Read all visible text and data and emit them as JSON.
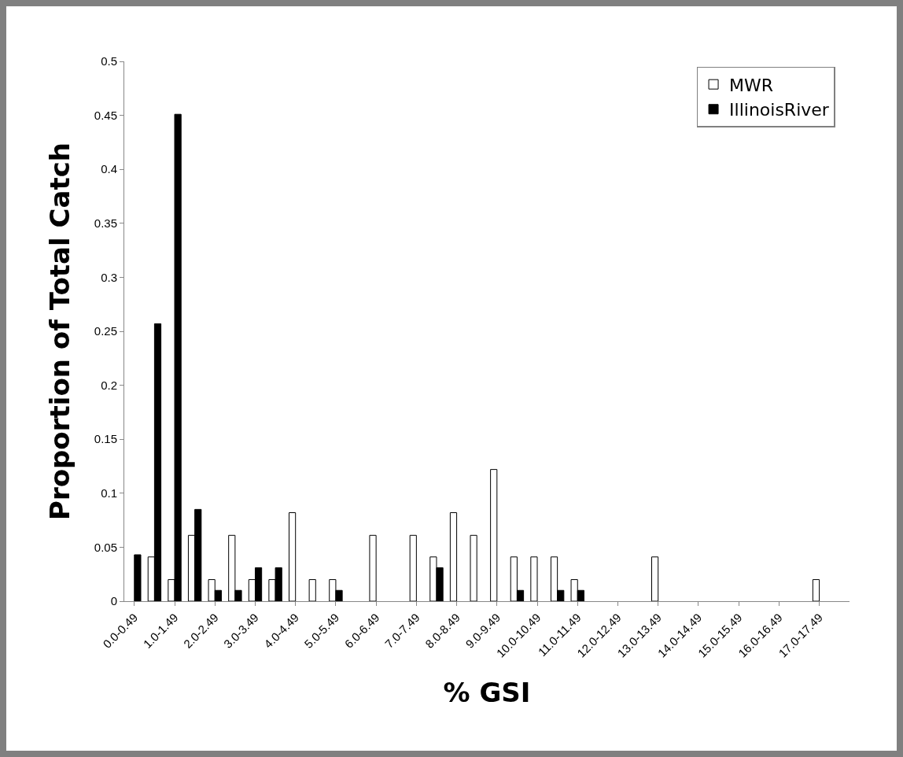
{
  "chart_data": {
    "type": "bar",
    "xlabel": "% GSI",
    "ylabel": "Proportion of Total Catch",
    "categories": [
      "0.0-0.49",
      null,
      "1.0-1.49",
      null,
      "2.0-2.49",
      null,
      "3.0-3.49",
      null,
      "4.0-4.49",
      null,
      "5.0-5.49",
      null,
      "6.0-6.49",
      null,
      "7.0-7.49",
      null,
      "8.0-8.49",
      null,
      "9.0-9.49",
      null,
      "10.0-10.49",
      null,
      "11.0-11.49",
      null,
      "12.0-12.49",
      null,
      "13.0-13.49",
      null,
      "14.0-14.49",
      null,
      "15.0-15.49",
      null,
      "16.0-16.49",
      null,
      "17.0-17.49",
      null
    ],
    "series": [
      {
        "name": "MWR",
        "color": "#ffffff",
        "values": [
          null,
          0.041,
          0.02,
          0.061,
          0.02,
          0.061,
          0.02,
          0.02,
          0.082,
          0.02,
          0.02,
          null,
          0.061,
          null,
          0.061,
          0.041,
          0.082,
          0.061,
          0.122,
          0.041,
          0.041,
          0.041,
          0.02,
          null,
          null,
          null,
          0.041,
          null,
          null,
          null,
          null,
          null,
          null,
          null,
          0.02,
          null
        ]
      },
      {
        "name": "IllinoisRiver",
        "color": "#000000",
        "values": [
          0.043,
          0.257,
          0.451,
          0.085,
          0.01,
          0.01,
          0.031,
          0.031,
          null,
          null,
          0.01,
          null,
          null,
          null,
          null,
          0.031,
          null,
          null,
          null,
          0.01,
          null,
          0.01,
          0.01,
          null,
          null,
          null,
          null,
          null,
          null,
          null,
          null,
          null,
          null,
          null,
          null,
          null
        ]
      }
    ],
    "ylim": [
      0,
      0.5
    ],
    "yticks": [
      0,
      0.05,
      0.1,
      0.15,
      0.2,
      0.25,
      0.3,
      0.35,
      0.4,
      0.45,
      0.5
    ],
    "grid": false,
    "legend": "top right"
  }
}
